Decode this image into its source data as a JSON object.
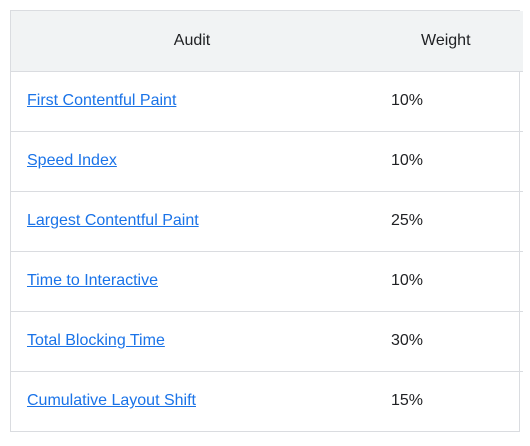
{
  "table": {
    "headers": {
      "audit": "Audit",
      "weight": "Weight"
    },
    "rows": [
      {
        "audit": "First Contentful Paint",
        "weight": "10%"
      },
      {
        "audit": "Speed Index",
        "weight": "10%"
      },
      {
        "audit": "Largest Contentful Paint",
        "weight": "25%"
      },
      {
        "audit": "Time to Interactive",
        "weight": "10%"
      },
      {
        "audit": "Total Blocking Time",
        "weight": "30%"
      },
      {
        "audit": "Cumulative Layout Shift",
        "weight": "15%"
      }
    ]
  },
  "colors": {
    "link": "#1a73e8",
    "header_bg": "#f1f3f4",
    "border": "#dadce0"
  }
}
